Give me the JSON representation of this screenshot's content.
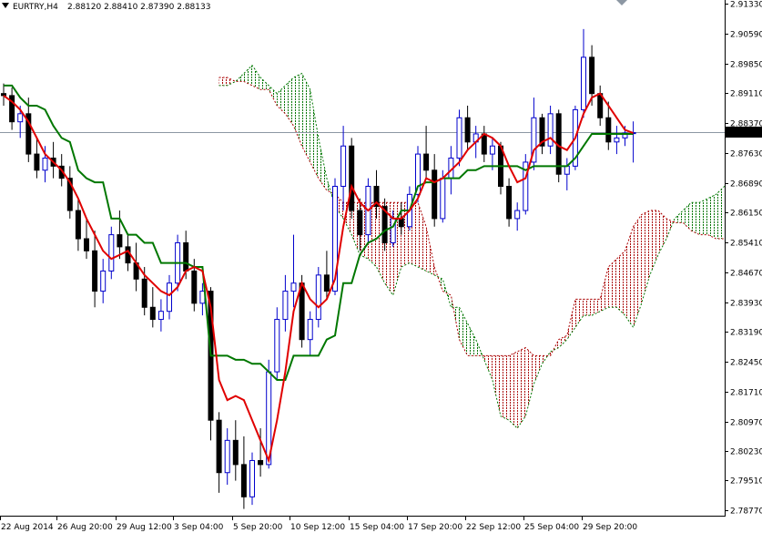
{
  "chart_data": {
    "type": "candlestick",
    "symbol": "EURTRY,H4",
    "ohlc_header": "2.88120 2.88410 2.87390 2.88133",
    "current_price_label": "2.88133",
    "current_price": 2.88133,
    "ylim": [
      2.787,
      2.9133
    ],
    "y_ticks": [
      "2.91330",
      "2.90590",
      "2.89850",
      "2.89110",
      "2.88370",
      "2.87630",
      "2.86890",
      "2.86150",
      "2.85410",
      "2.84670",
      "2.83930",
      "2.83190",
      "2.82450",
      "2.81710",
      "2.80970",
      "2.80230",
      "2.79510",
      "2.78770"
    ],
    "x_ticks": [
      "22 Aug 2014",
      "26 Aug 20:00",
      "29 Aug 12:00",
      "3 Sep 04:00",
      "5 Sep 20:00",
      "10 Sep 12:00",
      "15 Sep 04:00",
      "17 Sep 20:00",
      "22 Sep 12:00",
      "25 Sep 04:00",
      "29 Sep 20:00"
    ],
    "candles": [
      {
        "o": 2.891,
        "h": 2.8935,
        "l": 2.888,
        "c": 2.8905
      },
      {
        "o": 2.8905,
        "h": 2.8925,
        "l": 2.882,
        "c": 2.884
      },
      {
        "o": 2.884,
        "h": 2.888,
        "l": 2.88,
        "c": 2.886
      },
      {
        "o": 2.886,
        "h": 2.89,
        "l": 2.874,
        "c": 2.876
      },
      {
        "o": 2.876,
        "h": 2.88,
        "l": 2.87,
        "c": 2.872
      },
      {
        "o": 2.872,
        "h": 2.878,
        "l": 2.869,
        "c": 2.875
      },
      {
        "o": 2.875,
        "h": 2.879,
        "l": 2.87,
        "c": 2.873
      },
      {
        "o": 2.873,
        "h": 2.876,
        "l": 2.868,
        "c": 2.87
      },
      {
        "o": 2.87,
        "h": 2.873,
        "l": 2.86,
        "c": 2.862
      },
      {
        "o": 2.862,
        "h": 2.865,
        "l": 2.852,
        "c": 2.855
      },
      {
        "o": 2.855,
        "h": 2.86,
        "l": 2.85,
        "c": 2.852
      },
      {
        "o": 2.852,
        "h": 2.857,
        "l": 2.838,
        "c": 2.842
      },
      {
        "o": 2.842,
        "h": 2.85,
        "l": 2.839,
        "c": 2.847
      },
      {
        "o": 2.847,
        "h": 2.858,
        "l": 2.845,
        "c": 2.856
      },
      {
        "o": 2.856,
        "h": 2.862,
        "l": 2.85,
        "c": 2.853
      },
      {
        "o": 2.853,
        "h": 2.856,
        "l": 2.847,
        "c": 2.849
      },
      {
        "o": 2.849,
        "h": 2.854,
        "l": 2.842,
        "c": 2.845
      },
      {
        "o": 2.845,
        "h": 2.848,
        "l": 2.836,
        "c": 2.838
      },
      {
        "o": 2.838,
        "h": 2.843,
        "l": 2.833,
        "c": 2.835
      },
      {
        "o": 2.835,
        "h": 2.84,
        "l": 2.832,
        "c": 2.837
      },
      {
        "o": 2.837,
        "h": 2.846,
        "l": 2.835,
        "c": 2.844
      },
      {
        "o": 2.844,
        "h": 2.856,
        "l": 2.842,
        "c": 2.854
      },
      {
        "o": 2.854,
        "h": 2.857,
        "l": 2.845,
        "c": 2.847
      },
      {
        "o": 2.847,
        "h": 2.85,
        "l": 2.837,
        "c": 2.839
      },
      {
        "o": 2.839,
        "h": 2.844,
        "l": 2.836,
        "c": 2.842
      },
      {
        "o": 2.842,
        "h": 2.843,
        "l": 2.805,
        "c": 2.81
      },
      {
        "o": 2.81,
        "h": 2.812,
        "l": 2.792,
        "c": 2.797
      },
      {
        "o": 2.797,
        "h": 2.808,
        "l": 2.794,
        "c": 2.805
      },
      {
        "o": 2.805,
        "h": 2.81,
        "l": 2.795,
        "c": 2.799
      },
      {
        "o": 2.799,
        "h": 2.806,
        "l": 2.788,
        "c": 2.791
      },
      {
        "o": 2.791,
        "h": 2.802,
        "l": 2.789,
        "c": 2.8
      },
      {
        "o": 2.8,
        "h": 2.808,
        "l": 2.796,
        "c": 2.799
      },
      {
        "o": 2.799,
        "h": 2.825,
        "l": 2.798,
        "c": 2.822
      },
      {
        "o": 2.822,
        "h": 2.838,
        "l": 2.82,
        "c": 2.835
      },
      {
        "o": 2.835,
        "h": 2.846,
        "l": 2.832,
        "c": 2.842
      },
      {
        "o": 2.842,
        "h": 2.856,
        "l": 2.838,
        "c": 2.844
      },
      {
        "o": 2.844,
        "h": 2.846,
        "l": 2.828,
        "c": 2.83
      },
      {
        "o": 2.83,
        "h": 2.837,
        "l": 2.826,
        "c": 2.835
      },
      {
        "o": 2.835,
        "h": 2.848,
        "l": 2.833,
        "c": 2.846
      },
      {
        "o": 2.846,
        "h": 2.852,
        "l": 2.84,
        "c": 2.842
      },
      {
        "o": 2.842,
        "h": 2.87,
        "l": 2.841,
        "c": 2.868
      },
      {
        "o": 2.868,
        "h": 2.883,
        "l": 2.862,
        "c": 2.878
      },
      {
        "o": 2.878,
        "h": 2.88,
        "l": 2.86,
        "c": 2.862
      },
      {
        "o": 2.862,
        "h": 2.865,
        "l": 2.852,
        "c": 2.856
      },
      {
        "o": 2.856,
        "h": 2.87,
        "l": 2.854,
        "c": 2.868
      },
      {
        "o": 2.868,
        "h": 2.872,
        "l": 2.86,
        "c": 2.863
      },
      {
        "o": 2.863,
        "h": 2.865,
        "l": 2.852,
        "c": 2.854
      },
      {
        "o": 2.854,
        "h": 2.862,
        "l": 2.853,
        "c": 2.86
      },
      {
        "o": 2.86,
        "h": 2.864,
        "l": 2.856,
        "c": 2.858
      },
      {
        "o": 2.858,
        "h": 2.868,
        "l": 2.857,
        "c": 2.866
      },
      {
        "o": 2.866,
        "h": 2.878,
        "l": 2.864,
        "c": 2.876
      },
      {
        "o": 2.876,
        "h": 2.883,
        "l": 2.87,
        "c": 2.872
      },
      {
        "o": 2.872,
        "h": 2.876,
        "l": 2.858,
        "c": 2.86
      },
      {
        "o": 2.86,
        "h": 2.872,
        "l": 2.859,
        "c": 2.87
      },
      {
        "o": 2.87,
        "h": 2.878,
        "l": 2.866,
        "c": 2.875
      },
      {
        "o": 2.875,
        "h": 2.887,
        "l": 2.873,
        "c": 2.885
      },
      {
        "o": 2.885,
        "h": 2.888,
        "l": 2.877,
        "c": 2.879
      },
      {
        "o": 2.879,
        "h": 2.883,
        "l": 2.875,
        "c": 2.881
      },
      {
        "o": 2.881,
        "h": 2.883,
        "l": 2.874,
        "c": 2.876
      },
      {
        "o": 2.876,
        "h": 2.88,
        "l": 2.872,
        "c": 2.878
      },
      {
        "o": 2.878,
        "h": 2.879,
        "l": 2.866,
        "c": 2.868
      },
      {
        "o": 2.868,
        "h": 2.87,
        "l": 2.858,
        "c": 2.86
      },
      {
        "o": 2.86,
        "h": 2.864,
        "l": 2.857,
        "c": 2.862
      },
      {
        "o": 2.862,
        "h": 2.876,
        "l": 2.861,
        "c": 2.874
      },
      {
        "o": 2.874,
        "h": 2.89,
        "l": 2.872,
        "c": 2.885
      },
      {
        "o": 2.885,
        "h": 2.886,
        "l": 2.876,
        "c": 2.878
      },
      {
        "o": 2.878,
        "h": 2.888,
        "l": 2.876,
        "c": 2.886
      },
      {
        "o": 2.886,
        "h": 2.887,
        "l": 2.869,
        "c": 2.871
      },
      {
        "o": 2.871,
        "h": 2.875,
        "l": 2.867,
        "c": 2.873
      },
      {
        "o": 2.873,
        "h": 2.888,
        "l": 2.872,
        "c": 2.887
      },
      {
        "o": 2.887,
        "h": 2.907,
        "l": 2.885,
        "c": 2.9
      },
      {
        "o": 2.9,
        "h": 2.903,
        "l": 2.888,
        "c": 2.891
      },
      {
        "o": 2.891,
        "h": 2.893,
        "l": 2.883,
        "c": 2.885
      },
      {
        "o": 2.885,
        "h": 2.889,
        "l": 2.877,
        "c": 2.879
      },
      {
        "o": 2.879,
        "h": 2.883,
        "l": 2.876,
        "c": 2.88
      },
      {
        "o": 2.88,
        "h": 2.883,
        "l": 2.878,
        "c": 2.8812
      },
      {
        "o": 2.8812,
        "h": 2.8841,
        "l": 2.8739,
        "c": 2.8813
      }
    ],
    "tenkan": [
      2.8905,
      2.889,
      2.887,
      2.884,
      2.88,
      2.876,
      2.874,
      2.872,
      2.869,
      2.865,
      2.86,
      2.856,
      2.852,
      2.85,
      2.851,
      2.852,
      2.849,
      2.846,
      2.844,
      2.842,
      2.841,
      2.843,
      2.847,
      2.848,
      2.847,
      2.838,
      2.82,
      2.815,
      2.816,
      2.815,
      2.81,
      2.805,
      2.8,
      2.81,
      2.822,
      2.837,
      2.844,
      2.84,
      2.838,
      2.84,
      2.845,
      2.858,
      2.868,
      2.864,
      2.862,
      2.864,
      2.862,
      2.86,
      2.86,
      2.862,
      2.865,
      2.87,
      2.869,
      2.87,
      2.872,
      2.874,
      2.877,
      2.879,
      2.881,
      2.88,
      2.878,
      2.873,
      2.869,
      2.87,
      2.877,
      2.879,
      2.88,
      2.878,
      2.877,
      2.88,
      2.886,
      2.89,
      2.891,
      2.888,
      2.885,
      2.882,
      2.8812
    ],
    "kijun": [
      2.893,
      2.893,
      2.89,
      2.888,
      2.888,
      2.887,
      2.883,
      2.88,
      2.879,
      2.872,
      2.87,
      2.869,
      2.869,
      2.86,
      2.86,
      2.856,
      2.856,
      2.854,
      2.854,
      2.849,
      2.849,
      2.849,
      2.849,
      2.848,
      2.848,
      2.826,
      2.826,
      2.826,
      2.825,
      2.825,
      2.824,
      2.824,
      2.822,
      2.82,
      2.82,
      2.826,
      2.826,
      2.826,
      2.826,
      2.83,
      2.831,
      2.844,
      2.844,
      2.851,
      2.854,
      2.855,
      2.857,
      2.858,
      2.862,
      2.862,
      2.868,
      2.869,
      2.869,
      2.87,
      2.87,
      2.87,
      2.872,
      2.872,
      2.873,
      2.873,
      2.873,
      2.873,
      2.873,
      2.872,
      2.873,
      2.873,
      2.873,
      2.873,
      2.873,
      2.875,
      2.878,
      2.881,
      2.881,
      2.881,
      2.881,
      2.881,
      2.881
    ],
    "senkou_a": [
      2.893,
      2.893,
      2.894,
      2.896,
      2.898,
      2.895,
      2.893,
      2.891,
      2.893,
      2.895,
      2.896,
      2.892,
      2.88,
      2.87,
      2.863,
      2.86,
      2.856,
      2.851,
      2.85,
      2.848,
      2.844,
      2.841,
      2.848,
      2.849,
      2.848,
      2.847,
      2.846,
      2.845,
      2.838,
      2.838,
      2.834,
      2.83,
      2.825,
      2.82,
      2.811,
      2.81,
      2.808,
      2.811,
      2.819,
      2.824,
      2.827,
      2.828,
      2.83,
      2.833,
      2.836,
      2.836,
      2.837,
      2.838,
      2.838,
      2.836,
      2.833,
      2.839,
      2.846,
      2.851,
      2.855,
      2.86,
      2.862,
      2.864,
      2.864,
      2.865,
      2.866,
      2.868,
      2.869,
      2.866,
      2.866,
      2.873,
      2.874,
      2.872,
      2.87,
      2.869,
      2.87,
      2.87,
      2.87,
      2.87,
      2.877,
      2.884,
      2.885,
      2.885,
      2.884,
      2.881,
      2.881
    ],
    "senkou_b": [
      2.895,
      2.895,
      2.894,
      2.894,
      2.893,
      2.892,
      2.892,
      2.888,
      2.886,
      2.883,
      2.878,
      2.874,
      2.87,
      2.867,
      2.866,
      2.864,
      2.864,
      2.864,
      2.864,
      2.864,
      2.864,
      2.864,
      2.864,
      2.864,
      2.864,
      2.858,
      2.848,
      2.842,
      2.841,
      2.83,
      2.826,
      2.826,
      2.826,
      2.826,
      2.826,
      2.826,
      2.827,
      2.828,
      2.826,
      2.826,
      2.826,
      2.83,
      2.831,
      2.84,
      2.84,
      2.84,
      2.84,
      2.848,
      2.85,
      2.852,
      2.858,
      2.861,
      2.862,
      2.862,
      2.86,
      2.859,
      2.859,
      2.857,
      2.856,
      2.856,
      2.855,
      2.855,
      2.854,
      2.856,
      2.86,
      2.86,
      2.864,
      2.865,
      2.866,
      2.868,
      2.869,
      2.869,
      2.869,
      2.869,
      2.87,
      2.871,
      2.871,
      2.884,
      2.884,
      2.883,
      2.881
    ],
    "cloud_offset": 26,
    "colors": {
      "bull": "#0000cc",
      "bear": "#000000",
      "tenkan": "#e00000",
      "kijun": "#007700",
      "cloud_bull": "#007700",
      "cloud_bear": "#aa0000",
      "price_line": "#8c97a3",
      "price_box_bg": "#000000",
      "price_box_text": "#ffffff",
      "axis": "#000000"
    }
  }
}
